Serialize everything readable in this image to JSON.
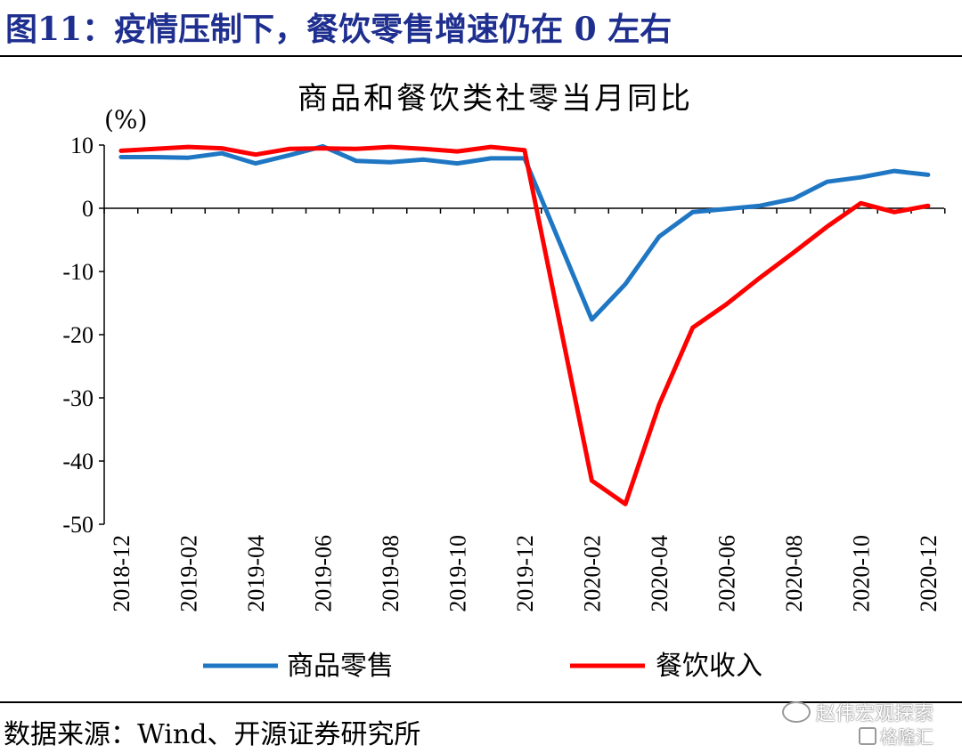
{
  "figure": {
    "title": "图11：疫情压制下，餐饮零售增速仍在 0 左右",
    "source": "数据来源：Wind、开源证券研究所"
  },
  "watermark": {
    "brand": "赵伟宏观探索",
    "brand_icon": "wechat-icon",
    "site": "格隆汇",
    "site_icon": "gelonghui-logo-icon"
  },
  "chart_data": {
    "type": "line",
    "title": "商品和餐饮类社零当月同比",
    "xlabel": "",
    "ylabel": "(%)",
    "ylim": [
      -50,
      10
    ],
    "yticks": [
      10,
      0,
      -10,
      -20,
      -30,
      -40,
      -50
    ],
    "grid": false,
    "legend_position": "bottom",
    "categories": [
      "2018-12",
      "2019-01",
      "2019-02",
      "2019-03",
      "2019-04",
      "2019-05",
      "2019-06",
      "2019-07",
      "2019-08",
      "2019-09",
      "2019-10",
      "2019-11",
      "2019-12",
      "2020-01",
      "2020-02",
      "2020-03",
      "2020-04",
      "2020-05",
      "2020-06",
      "2020-07",
      "2020-08",
      "2020-09",
      "2020-10",
      "2020-11",
      "2020-12"
    ],
    "tick_labels": [
      "2018-12",
      "2019-02",
      "2019-04",
      "2019-06",
      "2019-08",
      "2019-10",
      "2019-12",
      "2020-02",
      "2020-04",
      "2020-06",
      "2020-08",
      "2020-10",
      "2020-12"
    ],
    "series": [
      {
        "name": "商品零售",
        "color": "#1f77c4",
        "values": [
          8.1,
          8.1,
          8.0,
          8.7,
          7.1,
          8.4,
          9.8,
          7.5,
          7.3,
          7.7,
          7.1,
          7.9,
          7.9,
          null,
          -17.6,
          -12.0,
          -4.5,
          -0.6,
          -0.1,
          0.4,
          1.5,
          4.2,
          4.9,
          5.9,
          5.3
        ]
      },
      {
        "name": "餐饮收入",
        "color": "#ff0000",
        "values": [
          9.1,
          9.4,
          9.7,
          9.5,
          8.5,
          9.4,
          9.5,
          9.4,
          9.7,
          9.4,
          9.0,
          9.7,
          9.2,
          null,
          -43.1,
          -46.8,
          -31.1,
          -18.9,
          -15.2,
          -11.0,
          -7.0,
          -2.9,
          0.8,
          -0.6,
          0.4
        ]
      }
    ]
  }
}
